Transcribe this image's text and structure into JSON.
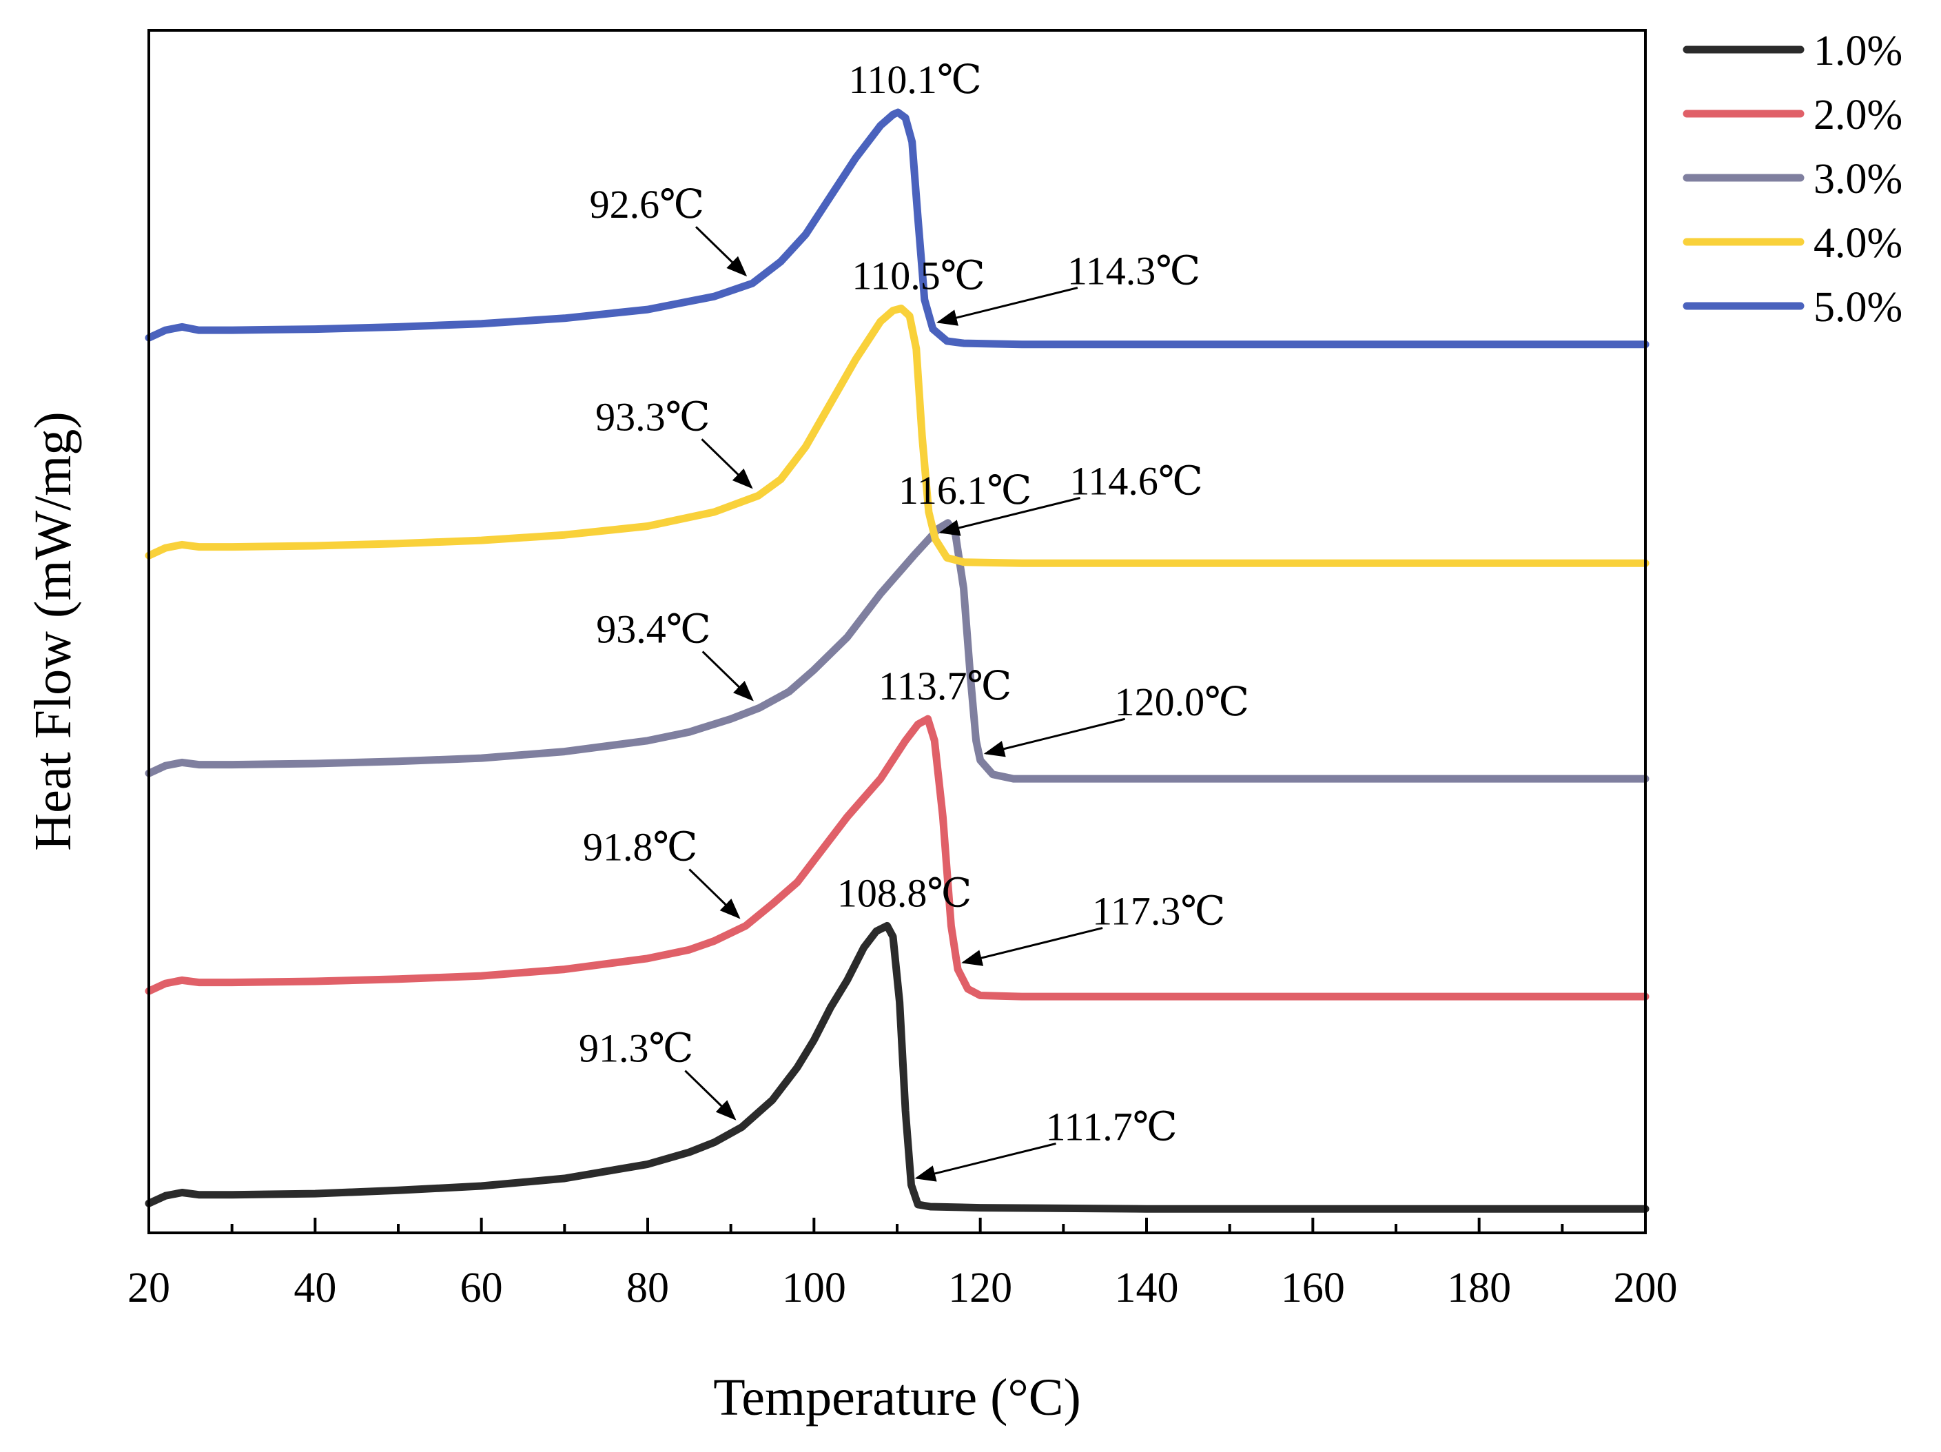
{
  "chart_data": {
    "type": "line",
    "title": "",
    "xlabel": "Temperature (°C)",
    "ylabel": "Heat Flow (mW/mg)",
    "xlim": [
      20,
      200
    ],
    "ylim": [
      0,
      10
    ],
    "xticks": [
      20,
      40,
      60,
      80,
      100,
      120,
      140,
      160,
      180,
      200
    ],
    "xtick_labels": [
      "20",
      "40",
      "60",
      "80",
      "100",
      "120",
      "140",
      "160",
      "180",
      "200"
    ],
    "yticks_shown": false,
    "grid": false,
    "legend_position": "top-right, outside plot",
    "series": [
      {
        "name": "1.0%",
        "color": "#2b2b2b",
        "baseline": 0.15,
        "points": [
          [
            20,
            0.15
          ],
          [
            22,
            0.22
          ],
          [
            24,
            0.25
          ],
          [
            26,
            0.23
          ],
          [
            30,
            0.23
          ],
          [
            40,
            0.24
          ],
          [
            50,
            0.27
          ],
          [
            60,
            0.31
          ],
          [
            70,
            0.38
          ],
          [
            80,
            0.51
          ],
          [
            85,
            0.62
          ],
          [
            88,
            0.71
          ],
          [
            91.3,
            0.85
          ],
          [
            95,
            1.1
          ],
          [
            98,
            1.4
          ],
          [
            100,
            1.65
          ],
          [
            102,
            1.95
          ],
          [
            104,
            2.2
          ],
          [
            106,
            2.5
          ],
          [
            107.5,
            2.65
          ],
          [
            108.8,
            2.7
          ],
          [
            109.5,
            2.6
          ],
          [
            110.3,
            2.0
          ],
          [
            111,
            1.0
          ],
          [
            111.7,
            0.32
          ],
          [
            112.5,
            0.14
          ],
          [
            114,
            0.12
          ],
          [
            120,
            0.11
          ],
          [
            140,
            0.1
          ],
          [
            160,
            0.1
          ],
          [
            180,
            0.1
          ],
          [
            200,
            0.1
          ]
        ],
        "annotations": [
          {
            "label": "91.3℃",
            "x": 91.3
          },
          {
            "label": "108.8℃",
            "x": 108.8
          },
          {
            "label": "111.7℃",
            "x": 111.7
          }
        ]
      },
      {
        "name": "2.0%",
        "color": "#e06068",
        "baseline": 2.1,
        "points": [
          [
            20,
            2.1
          ],
          [
            22,
            2.17
          ],
          [
            24,
            2.2
          ],
          [
            26,
            2.18
          ],
          [
            30,
            2.18
          ],
          [
            40,
            2.19
          ],
          [
            50,
            2.21
          ],
          [
            60,
            2.24
          ],
          [
            70,
            2.3
          ],
          [
            80,
            2.4
          ],
          [
            85,
            2.48
          ],
          [
            88,
            2.56
          ],
          [
            91.8,
            2.7
          ],
          [
            95,
            2.9
          ],
          [
            98,
            3.1
          ],
          [
            100,
            3.3
          ],
          [
            104,
            3.7
          ],
          [
            108,
            4.05
          ],
          [
            111,
            4.4
          ],
          [
            112.5,
            4.55
          ],
          [
            113.7,
            4.6
          ],
          [
            114.5,
            4.4
          ],
          [
            115.5,
            3.7
          ],
          [
            116.5,
            2.7
          ],
          [
            117.3,
            2.3
          ],
          [
            118.5,
            2.12
          ],
          [
            120,
            2.06
          ],
          [
            125,
            2.05
          ],
          [
            140,
            2.05
          ],
          [
            160,
            2.05
          ],
          [
            180,
            2.05
          ],
          [
            200,
            2.05
          ]
        ],
        "annotations": [
          {
            "label": "91.8℃",
            "x": 91.8
          },
          {
            "label": "113.7℃",
            "x": 113.7
          },
          {
            "label": "117.3℃",
            "x": 117.3
          }
        ]
      },
      {
        "name": "3.0%",
        "color": "#7f7f9f",
        "baseline": 4.1,
        "points": [
          [
            20,
            4.1
          ],
          [
            22,
            4.17
          ],
          [
            24,
            4.2
          ],
          [
            26,
            4.18
          ],
          [
            30,
            4.18
          ],
          [
            40,
            4.19
          ],
          [
            50,
            4.21
          ],
          [
            60,
            4.24
          ],
          [
            70,
            4.3
          ],
          [
            80,
            4.4
          ],
          [
            85,
            4.48
          ],
          [
            90,
            4.6
          ],
          [
            93.4,
            4.7
          ],
          [
            97,
            4.85
          ],
          [
            100,
            5.05
          ],
          [
            104,
            5.35
          ],
          [
            108,
            5.75
          ],
          [
            112,
            6.1
          ],
          [
            115,
            6.35
          ],
          [
            116.1,
            6.4
          ],
          [
            117,
            6.3
          ],
          [
            118,
            5.8
          ],
          [
            118.8,
            5.0
          ],
          [
            119.5,
            4.4
          ],
          [
            120,
            4.22
          ],
          [
            121.5,
            4.09
          ],
          [
            124,
            4.05
          ],
          [
            130,
            4.05
          ],
          [
            140,
            4.05
          ],
          [
            160,
            4.05
          ],
          [
            180,
            4.05
          ],
          [
            200,
            4.05
          ]
        ],
        "annotations": [
          {
            "label": "93.4℃",
            "x": 93.4
          },
          {
            "label": "116.1℃",
            "x": 116.1
          },
          {
            "label": "120.0℃",
            "x": 120.0
          }
        ]
      },
      {
        "name": "4.0%",
        "color": "#f9d13a",
        "baseline": 6.1,
        "points": [
          [
            20,
            6.1
          ],
          [
            22,
            6.17
          ],
          [
            24,
            6.2
          ],
          [
            26,
            6.18
          ],
          [
            30,
            6.18
          ],
          [
            40,
            6.19
          ],
          [
            50,
            6.21
          ],
          [
            60,
            6.24
          ],
          [
            70,
            6.29
          ],
          [
            80,
            6.37
          ],
          [
            88,
            6.5
          ],
          [
            93.3,
            6.65
          ],
          [
            96,
            6.8
          ],
          [
            99,
            7.1
          ],
          [
            102,
            7.5
          ],
          [
            105,
            7.9
          ],
          [
            108,
            8.25
          ],
          [
            109.5,
            8.35
          ],
          [
            110.5,
            8.37
          ],
          [
            111.5,
            8.3
          ],
          [
            112.3,
            8.0
          ],
          [
            113,
            7.2
          ],
          [
            113.8,
            6.5
          ],
          [
            114.6,
            6.25
          ],
          [
            116,
            6.08
          ],
          [
            118,
            6.04
          ],
          [
            125,
            6.03
          ],
          [
            140,
            6.03
          ],
          [
            160,
            6.03
          ],
          [
            180,
            6.03
          ],
          [
            200,
            6.03
          ]
        ],
        "annotations": [
          {
            "label": "93.3℃",
            "x": 93.3
          },
          {
            "label": "110.5℃",
            "x": 110.5
          },
          {
            "label": "114.6℃",
            "x": 114.6
          }
        ]
      },
      {
        "name": "5.0%",
        "color": "#4a62bd",
        "baseline": 8.1,
        "points": [
          [
            20,
            8.1
          ],
          [
            22,
            8.17
          ],
          [
            24,
            8.2
          ],
          [
            26,
            8.17
          ],
          [
            30,
            8.17
          ],
          [
            40,
            8.18
          ],
          [
            50,
            8.2
          ],
          [
            60,
            8.23
          ],
          [
            70,
            8.28
          ],
          [
            80,
            8.36
          ],
          [
            88,
            8.48
          ],
          [
            92.6,
            8.6
          ],
          [
            96,
            8.8
          ],
          [
            99,
            9.05
          ],
          [
            102,
            9.4
          ],
          [
            105,
            9.75
          ],
          [
            108,
            10.05
          ],
          [
            109.5,
            10.15
          ],
          [
            110.1,
            10.17
          ],
          [
            111,
            10.12
          ],
          [
            111.8,
            9.9
          ],
          [
            112.5,
            9.2
          ],
          [
            113.3,
            8.45
          ],
          [
            114.3,
            8.18
          ],
          [
            116,
            8.07
          ],
          [
            118,
            8.05
          ],
          [
            125,
            8.04
          ],
          [
            140,
            8.04
          ],
          [
            160,
            8.04
          ],
          [
            180,
            8.04
          ],
          [
            200,
            8.04
          ]
        ],
        "annotations": [
          {
            "label": "92.6℃",
            "x": 92.6
          },
          {
            "label": "110.1℃",
            "x": 110.1
          },
          {
            "label": "114.3℃",
            "x": 114.3
          }
        ]
      }
    ]
  }
}
